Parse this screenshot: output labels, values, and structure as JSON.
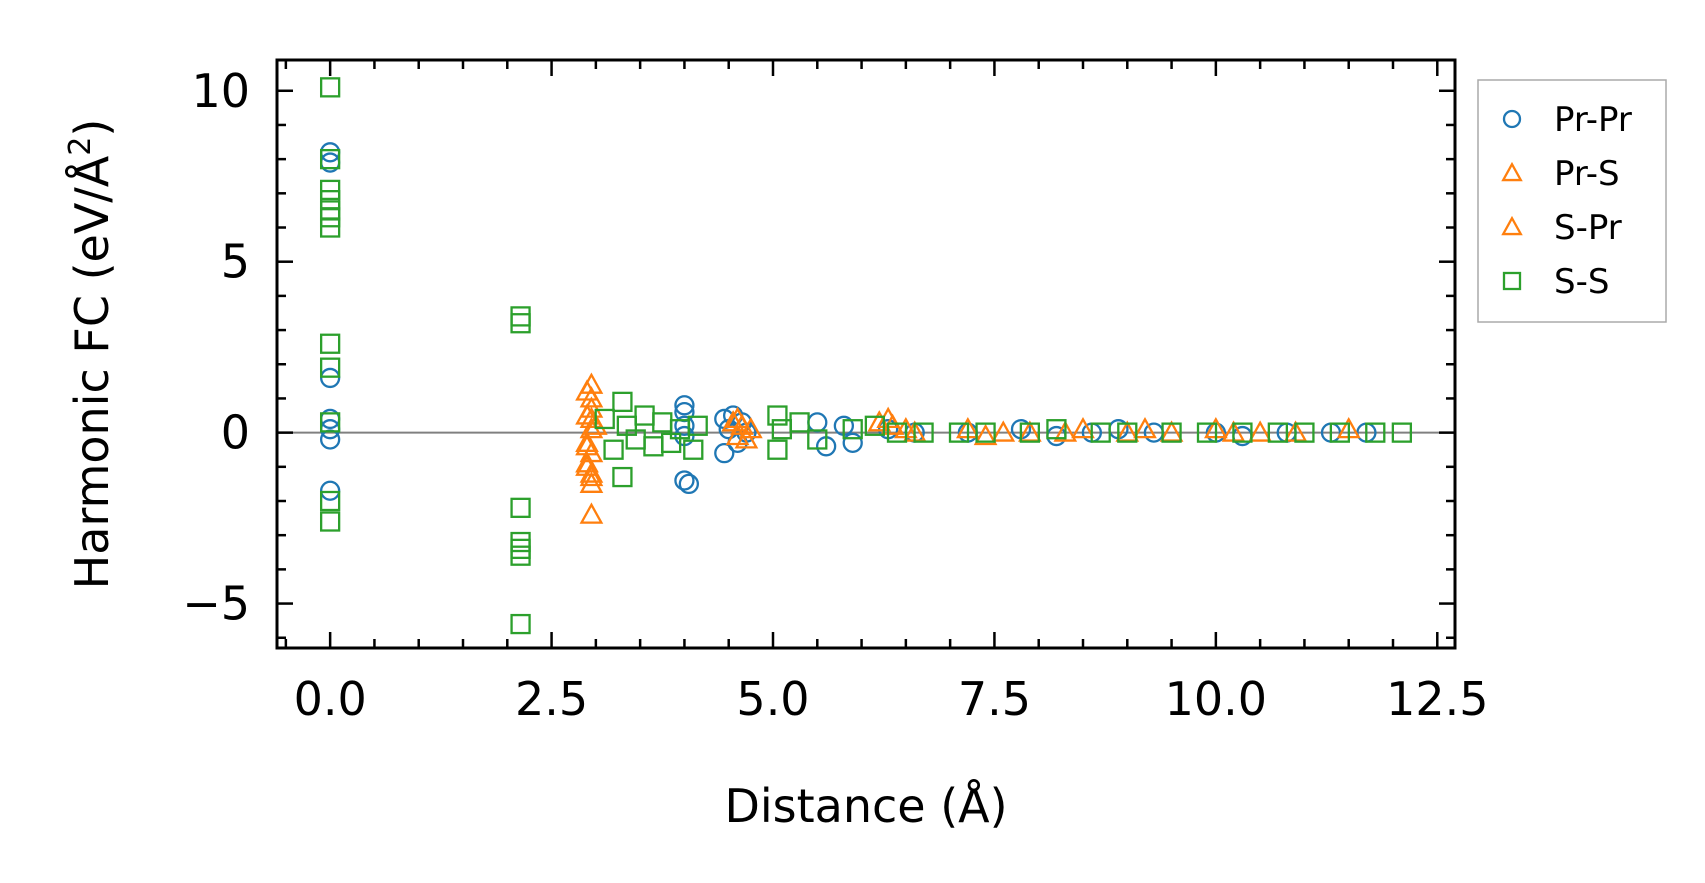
{
  "chart_data": {
    "type": "scatter",
    "title": "",
    "xlabel": "Distance (Å)",
    "ylabel_main": "Harmonic FC (eV/Å",
    "ylabel_sup": "2",
    "ylabel_close": ")",
    "xlim": [
      -0.6,
      12.7
    ],
    "ylim": [
      -6.3,
      10.9
    ],
    "xticks": [
      0.0,
      2.5,
      5.0,
      7.5,
      10.0,
      12.5
    ],
    "xtick_labels": [
      "0.0",
      "2.5",
      "5.0",
      "7.5",
      "10.0",
      "12.5"
    ],
    "yticks": [
      10,
      5,
      0,
      -5
    ],
    "ytick_labels": [
      "10",
      "5",
      "0",
      "−5"
    ],
    "legend_position": "outside-right-top",
    "series": [
      {
        "name": "Pr-Pr",
        "marker": "circle",
        "color": "#1f77b4",
        "points": [
          [
            0.0,
            8.2
          ],
          [
            0.0,
            7.9
          ],
          [
            0.0,
            1.6
          ],
          [
            0.0,
            0.4
          ],
          [
            0.0,
            0.1
          ],
          [
            0.0,
            -0.2
          ],
          [
            0.0,
            -1.7
          ],
          [
            4.0,
            0.8
          ],
          [
            4.0,
            0.6
          ],
          [
            4.0,
            -1.4
          ],
          [
            4.05,
            -1.5
          ],
          [
            4.0,
            0.2
          ],
          [
            4.0,
            -0.1
          ],
          [
            4.45,
            0.4
          ],
          [
            4.45,
            -0.6
          ],
          [
            4.5,
            0.1
          ],
          [
            4.55,
            0.5
          ],
          [
            4.6,
            -0.3
          ],
          [
            4.65,
            0.3
          ],
          [
            4.7,
            0.0
          ],
          [
            5.5,
            0.3
          ],
          [
            5.6,
            -0.4
          ],
          [
            5.8,
            0.2
          ],
          [
            5.9,
            -0.3
          ],
          [
            6.3,
            0.1
          ],
          [
            6.6,
            0.0
          ],
          [
            7.2,
            0.0
          ],
          [
            7.8,
            0.1
          ],
          [
            8.2,
            -0.1
          ],
          [
            8.6,
            0.0
          ],
          [
            8.9,
            0.1
          ],
          [
            9.3,
            0.0
          ],
          [
            10.0,
            0.0
          ],
          [
            10.3,
            -0.1
          ],
          [
            10.8,
            0.0
          ],
          [
            11.3,
            0.0
          ],
          [
            11.7,
            0.0
          ]
        ]
      },
      {
        "name": "Pr-S",
        "marker": "triangle",
        "color": "#ff7f0e",
        "points": [
          [
            2.95,
            1.4
          ],
          [
            2.95,
            1.0
          ],
          [
            2.95,
            0.7
          ],
          [
            2.95,
            0.4
          ],
          [
            2.95,
            0.1
          ],
          [
            2.9,
            -0.3
          ],
          [
            2.95,
            -0.6
          ],
          [
            2.9,
            -0.9
          ],
          [
            2.95,
            -1.2
          ],
          [
            2.95,
            -1.5
          ],
          [
            2.95,
            -2.4
          ],
          [
            3.0,
            0.2
          ],
          [
            4.6,
            0.4
          ],
          [
            4.65,
            0.2
          ],
          [
            4.7,
            -0.2
          ],
          [
            4.75,
            0.1
          ],
          [
            6.3,
            0.4
          ],
          [
            6.35,
            0.2
          ],
          [
            6.6,
            0.0
          ],
          [
            7.2,
            0.1
          ],
          [
            7.4,
            -0.1
          ],
          [
            7.9,
            0.0
          ],
          [
            8.5,
            0.1
          ],
          [
            9.0,
            0.0
          ],
          [
            9.5,
            0.0
          ],
          [
            10.0,
            0.1
          ],
          [
            10.5,
            0.0
          ]
        ]
      },
      {
        "name": "S-Pr",
        "marker": "triangle",
        "color": "#ff7f0e",
        "points": [
          [
            2.9,
            1.2
          ],
          [
            2.9,
            0.5
          ],
          [
            2.9,
            -0.4
          ],
          [
            2.9,
            -1.0
          ],
          [
            2.95,
            -1.3
          ],
          [
            4.55,
            0.3
          ],
          [
            4.6,
            -0.1
          ],
          [
            6.2,
            0.3
          ],
          [
            6.5,
            0.1
          ],
          [
            7.6,
            0.0
          ],
          [
            8.3,
            0.0
          ],
          [
            9.2,
            0.1
          ],
          [
            10.2,
            0.0
          ],
          [
            10.9,
            0.0
          ],
          [
            11.5,
            0.1
          ]
        ]
      },
      {
        "name": "S-S",
        "marker": "square",
        "color": "#2ca02c",
        "points": [
          [
            0.0,
            10.1
          ],
          [
            0.0,
            8.0
          ],
          [
            0.0,
            7.1
          ],
          [
            0.0,
            6.8
          ],
          [
            0.0,
            6.5
          ],
          [
            0.0,
            6.3
          ],
          [
            0.0,
            6.0
          ],
          [
            0.0,
            2.6
          ],
          [
            0.0,
            1.9
          ],
          [
            0.0,
            0.3
          ],
          [
            0.0,
            -2.0
          ],
          [
            0.0,
            -2.6
          ],
          [
            2.15,
            3.4
          ],
          [
            2.15,
            3.2
          ],
          [
            2.15,
            -2.2
          ],
          [
            2.15,
            -3.2
          ],
          [
            2.15,
            -3.4
          ],
          [
            2.15,
            -3.6
          ],
          [
            2.15,
            -5.6
          ],
          [
            3.3,
            0.9
          ],
          [
            3.3,
            -1.3
          ],
          [
            3.1,
            0.4
          ],
          [
            3.2,
            -0.5
          ],
          [
            3.35,
            0.2
          ],
          [
            3.45,
            -0.2
          ],
          [
            3.55,
            0.5
          ],
          [
            3.65,
            -0.4
          ],
          [
            3.75,
            0.3
          ],
          [
            3.85,
            -0.3
          ],
          [
            3.95,
            0.1
          ],
          [
            4.1,
            -0.5
          ],
          [
            4.15,
            0.2
          ],
          [
            5.05,
            0.5
          ],
          [
            5.05,
            -0.5
          ],
          [
            5.1,
            0.1
          ],
          [
            5.3,
            0.3
          ],
          [
            5.5,
            -0.2
          ],
          [
            5.9,
            0.1
          ],
          [
            6.15,
            0.2
          ],
          [
            6.4,
            0.0
          ],
          [
            6.7,
            0.0
          ],
          [
            7.1,
            0.0
          ],
          [
            7.4,
            0.0
          ],
          [
            7.9,
            0.0
          ],
          [
            8.2,
            0.1
          ],
          [
            8.7,
            0.0
          ],
          [
            9.0,
            0.0
          ],
          [
            9.5,
            0.0
          ],
          [
            9.9,
            0.0
          ],
          [
            10.3,
            0.0
          ],
          [
            10.7,
            0.0
          ],
          [
            11.0,
            0.0
          ],
          [
            11.4,
            0.0
          ],
          [
            11.8,
            0.0
          ],
          [
            12.1,
            0.0
          ]
        ]
      }
    ]
  }
}
